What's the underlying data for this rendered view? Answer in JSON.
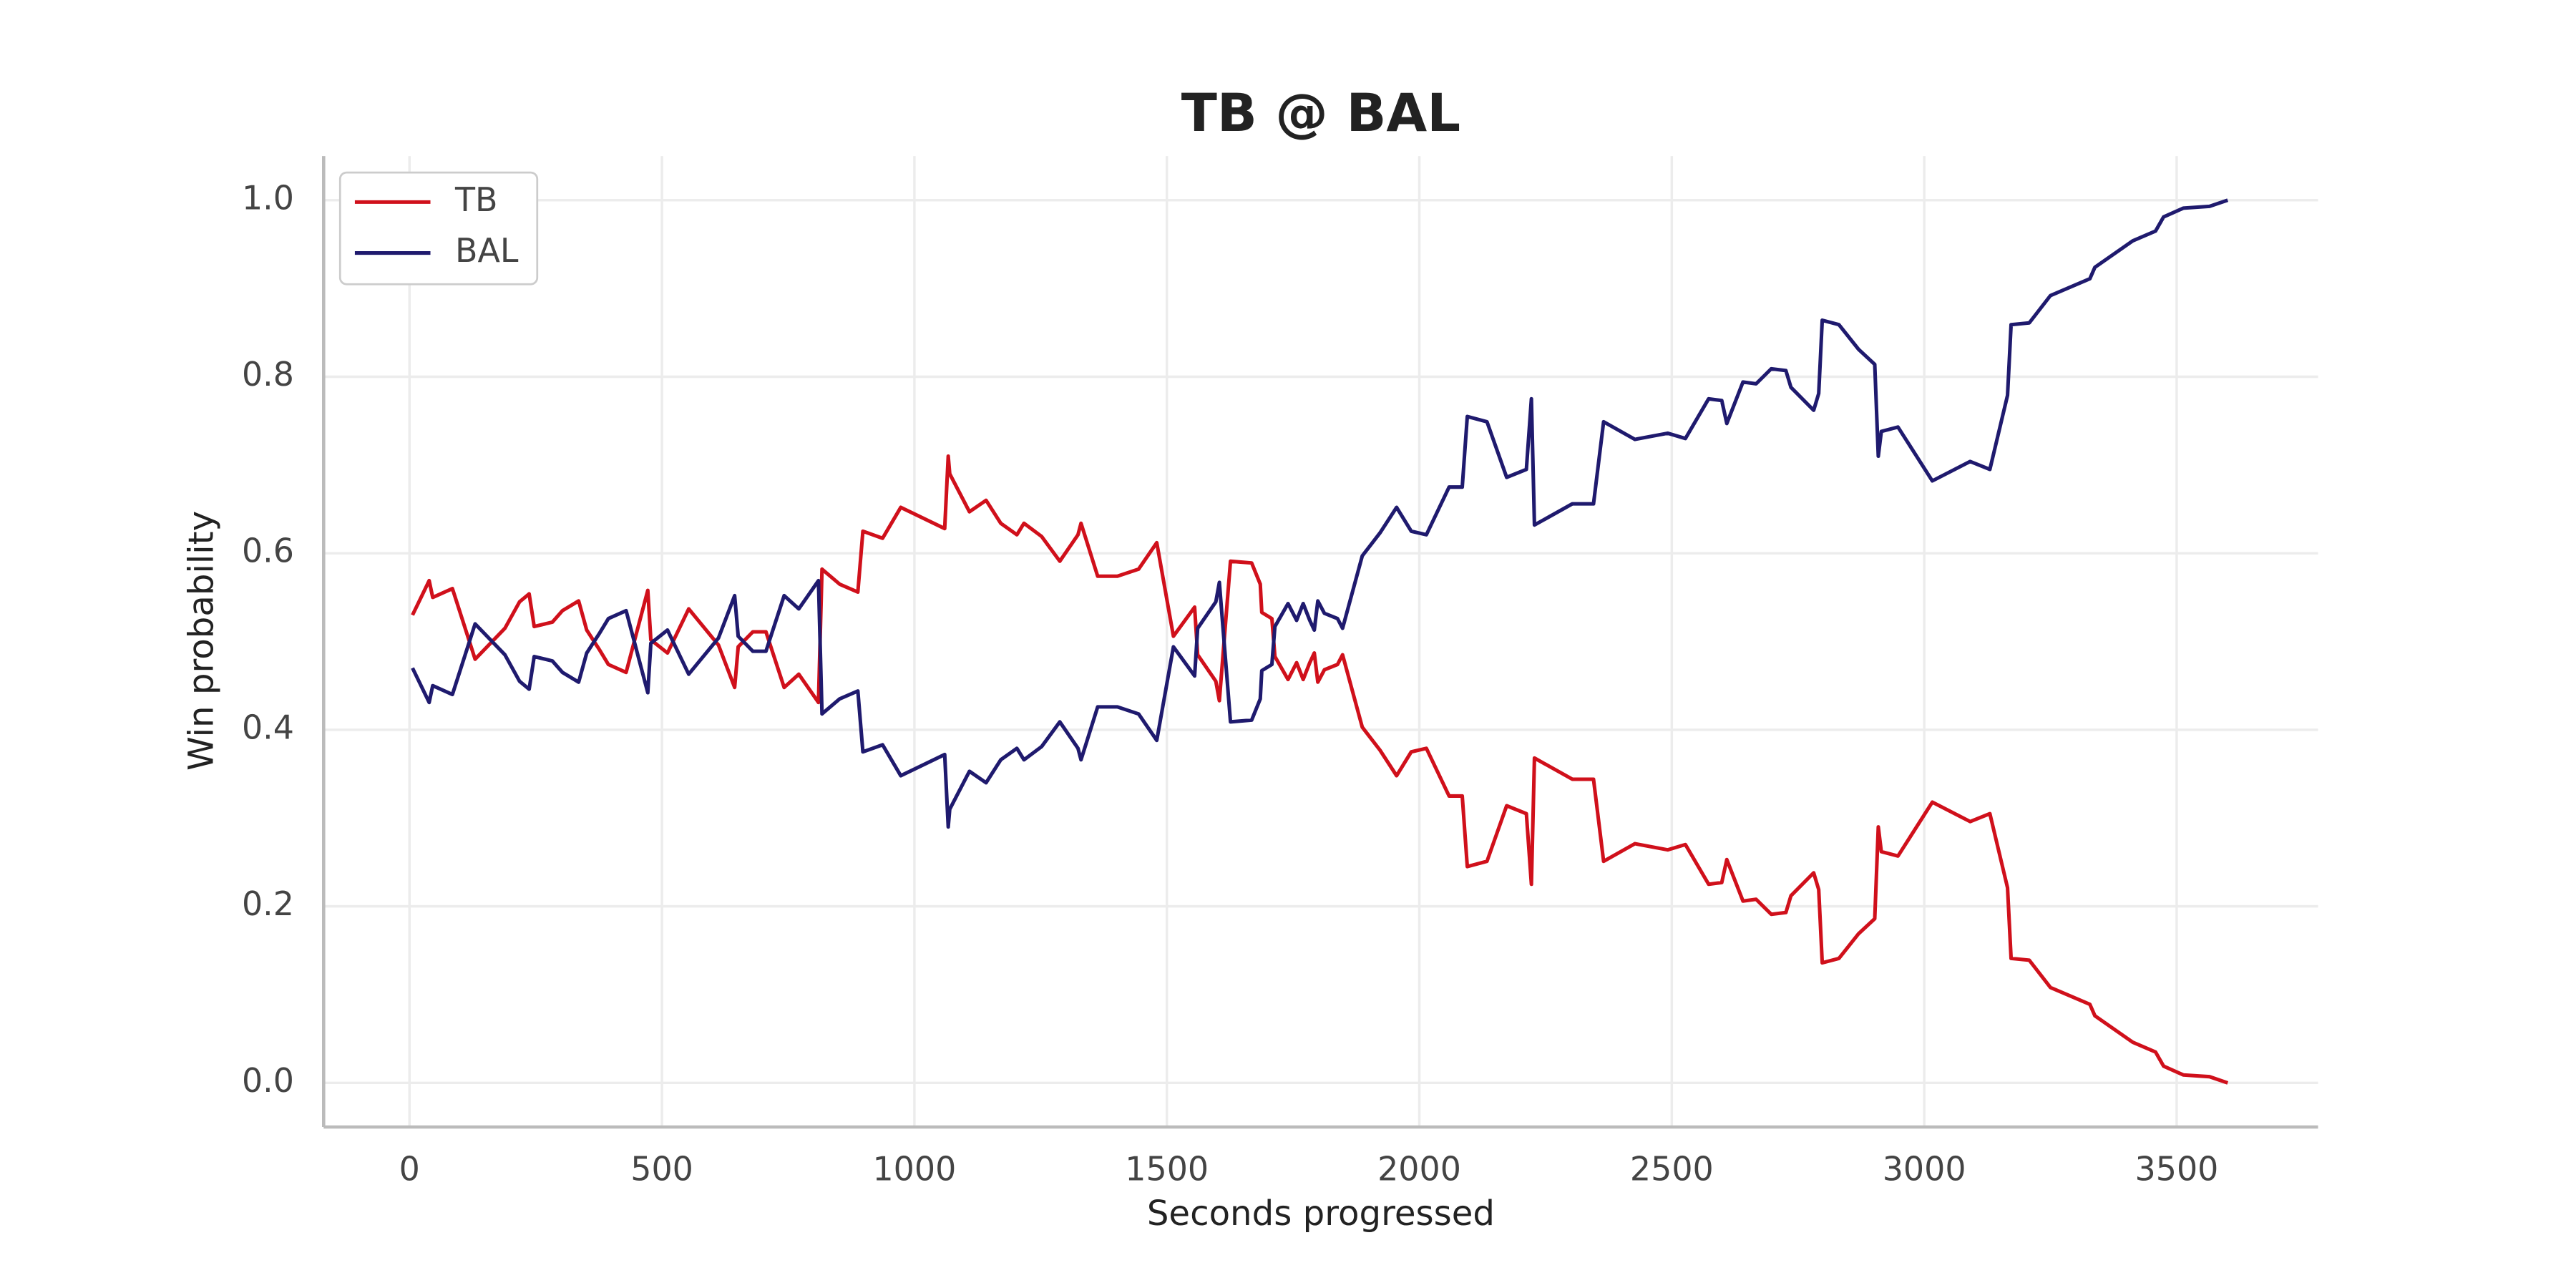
{
  "chart_data": {
    "type": "line",
    "title": "TB @ BAL",
    "xlabel": "Seconds progressed",
    "ylabel": "Win probability",
    "x": [
      6,
      39,
      46,
      85,
      130,
      189,
      218,
      237,
      247,
      283,
      303,
      335,
      351,
      377,
      394,
      429,
      472,
      478,
      511,
      553,
      612,
      644,
      651,
      680,
      706,
      742,
      771,
      810,
      817,
      852,
      888,
      898,
      937,
      973,
      1060,
      1067,
      1070,
      1109,
      1142,
      1171,
      1203,
      1217,
      1252,
      1288,
      1324,
      1330,
      1363,
      1402,
      1444,
      1480,
      1513,
      1555,
      1561,
      1597,
      1604,
      1626,
      1668,
      1685,
      1688,
      1708,
      1714,
      1740,
      1757,
      1770,
      1783,
      1792,
      1799,
      1812,
      1838,
      1848,
      1887,
      1922,
      1955,
      1984,
      2014,
      2059,
      2085,
      2095,
      2134,
      2173,
      2212,
      2222,
      2228,
      2303,
      2345,
      2365,
      2427,
      2492,
      2527,
      2573,
      2599,
      2609,
      2641,
      2667,
      2697,
      2726,
      2736,
      2781,
      2791,
      2798,
      2831,
      2870,
      2902,
      2909,
      2915,
      2948,
      3016,
      3091,
      3130,
      3165,
      3172,
      3208,
      3250,
      3328,
      3338,
      3413,
      3458,
      3474,
      3513,
      3565,
      3601
    ],
    "series": [
      {
        "name": "TB",
        "color": "#d0101b",
        "values": [
          0.53,
          0.569,
          0.55,
          0.56,
          0.48,
          0.515,
          0.545,
          0.554,
          0.517,
          0.522,
          0.535,
          0.546,
          0.513,
          0.49,
          0.474,
          0.465,
          0.558,
          0.502,
          0.487,
          0.537,
          0.496,
          0.448,
          0.494,
          0.511,
          0.511,
          0.448,
          0.463,
          0.431,
          0.582,
          0.565,
          0.556,
          0.625,
          0.617,
          0.652,
          0.628,
          0.71,
          0.69,
          0.647,
          0.66,
          0.634,
          0.621,
          0.634,
          0.619,
          0.591,
          0.621,
          0.634,
          0.574,
          0.574,
          0.582,
          0.612,
          0.506,
          0.539,
          0.485,
          0.455,
          0.433,
          0.591,
          0.589,
          0.565,
          0.533,
          0.526,
          0.483,
          0.457,
          0.476,
          0.457,
          0.476,
          0.487,
          0.454,
          0.468,
          0.474,
          0.485,
          0.403,
          0.377,
          0.348,
          0.375,
          0.379,
          0.325,
          0.325,
          0.245,
          0.251,
          0.314,
          0.305,
          0.225,
          0.368,
          0.344,
          0.344,
          0.251,
          0.271,
          0.264,
          0.27,
          0.225,
          0.227,
          0.253,
          0.206,
          0.208,
          0.191,
          0.193,
          0.212,
          0.238,
          0.219,
          0.136,
          0.141,
          0.169,
          0.186,
          0.29,
          0.262,
          0.257,
          0.318,
          0.296,
          0.305,
          0.221,
          0.141,
          0.139,
          0.108,
          0.089,
          0.076,
          0.046,
          0.035,
          0.019,
          0.009,
          0.007,
          0.0
        ]
      },
      {
        "name": "BAL",
        "color": "#1f1a6e",
        "values": [
          0.47,
          0.431,
          0.45,
          0.44,
          0.52,
          0.485,
          0.455,
          0.446,
          0.483,
          0.478,
          0.465,
          0.454,
          0.487,
          0.51,
          0.526,
          0.535,
          0.442,
          0.498,
          0.513,
          0.463,
          0.504,
          0.552,
          0.506,
          0.489,
          0.489,
          0.552,
          0.537,
          0.569,
          0.418,
          0.435,
          0.444,
          0.375,
          0.383,
          0.348,
          0.372,
          0.29,
          0.31,
          0.353,
          0.34,
          0.366,
          0.379,
          0.366,
          0.381,
          0.409,
          0.379,
          0.366,
          0.426,
          0.426,
          0.418,
          0.388,
          0.494,
          0.461,
          0.515,
          0.545,
          0.567,
          0.409,
          0.411,
          0.435,
          0.467,
          0.474,
          0.517,
          0.543,
          0.524,
          0.543,
          0.524,
          0.513,
          0.546,
          0.532,
          0.526,
          0.515,
          0.597,
          0.623,
          0.652,
          0.625,
          0.621,
          0.675,
          0.675,
          0.755,
          0.749,
          0.686,
          0.695,
          0.775,
          0.632,
          0.656,
          0.656,
          0.749,
          0.729,
          0.736,
          0.73,
          0.775,
          0.773,
          0.747,
          0.794,
          0.792,
          0.809,
          0.807,
          0.788,
          0.762,
          0.781,
          0.864,
          0.859,
          0.831,
          0.814,
          0.71,
          0.738,
          0.743,
          0.682,
          0.704,
          0.695,
          0.779,
          0.859,
          0.861,
          0.892,
          0.911,
          0.924,
          0.954,
          0.965,
          0.981,
          0.991,
          0.993,
          1.0
        ]
      }
    ],
    "xlim": [
      -170,
      3780
    ],
    "ylim": [
      -0.05,
      1.05
    ],
    "xticks": [
      0,
      500,
      1000,
      1500,
      2000,
      2500,
      3000,
      3500
    ],
    "yticks": [
      {
        "value": 0,
        "label": "0.0"
      },
      0.2,
      0.4,
      0.6,
      0.8,
      {
        "value": 1,
        "label": "1.0"
      }
    ],
    "grid": true,
    "legend": "upper-left"
  }
}
